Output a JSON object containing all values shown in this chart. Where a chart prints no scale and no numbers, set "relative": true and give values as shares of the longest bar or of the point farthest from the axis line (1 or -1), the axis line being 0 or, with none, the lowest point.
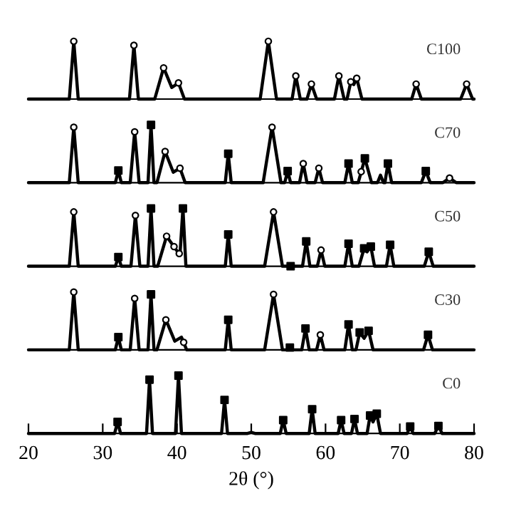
{
  "chart_data": [
    {
      "type": "line",
      "relative": true,
      "xlim": [
        20,
        80
      ],
      "tick_labels": false,
      "series": [
        {
          "name": "C100",
          "color": "#000000",
          "x": [
            20,
            25.5,
            26.1,
            26.7,
            33.6,
            34.2,
            34.8,
            37.0,
            38.2,
            39.3,
            40.2,
            41.0,
            51.2,
            52.3,
            53.4,
            55.5,
            56.0,
            56.6,
            57.5,
            58.1,
            58.8,
            61.2,
            61.8,
            62.5,
            62.9,
            63.4,
            63.8,
            64.2,
            64.9,
            71.6,
            72.2,
            72.9,
            78.2,
            79.0,
            79.8,
            80
          ],
          "values": [
            0,
            0,
            1,
            0,
            0,
            0.93,
            0,
            0,
            0.54,
            0.2,
            0.28,
            0,
            0,
            1,
            0,
            0,
            0.4,
            0,
            0,
            0.26,
            0,
            0,
            0.4,
            0,
            0,
            0.3,
            0.25,
            0.36,
            0,
            0,
            0.26,
            0,
            0,
            0.26,
            0,
            0
          ]
        },
        {
          "type": "scatter",
          "marker": "circle",
          "color": "#000000",
          "x": [
            26.1,
            34.2,
            38.2,
            40.2,
            52.3,
            56.0,
            58.1,
            61.8,
            63.4,
            64.2,
            72.2,
            79.0
          ],
          "values": [
            1,
            0.93,
            0.54,
            0.28,
            1,
            0.4,
            0.26,
            0.4,
            0.3,
            0.36,
            0.26,
            0.26
          ]
        }
      ]
    },
    {
      "type": "line",
      "relative": true,
      "xlim": [
        20,
        80
      ],
      "tick_labels": false,
      "series": [
        {
          "name": "C70",
          "color": "#000000",
          "x": [
            20,
            25.5,
            26.1,
            26.7,
            31.7,
            32.1,
            32.5,
            33.7,
            34.3,
            34.9,
            36.1,
            36.5,
            36.9,
            37.3,
            38.4,
            39.5,
            40.4,
            41.1,
            46.5,
            46.9,
            47.3,
            51.6,
            52.8,
            54.0,
            54.5,
            54.9,
            55.3,
            56.5,
            57.0,
            57.5,
            58.6,
            59.1,
            59.6,
            62.6,
            63.1,
            63.6,
            64.4,
            65.3,
            66.2,
            67.0,
            67.4,
            67.8,
            68.0,
            68.4,
            68.9,
            72.9,
            73.5,
            74.1,
            75.8,
            76.7,
            77.6,
            80
          ],
          "values": [
            0,
            0,
            0.96,
            0,
            0,
            0.21,
            0,
            0,
            0.88,
            0,
            0,
            1,
            0,
            0,
            0.54,
            0.18,
            0.25,
            0,
            0,
            0.5,
            0,
            0,
            0.96,
            0,
            0,
            0.2,
            0,
            0,
            0.33,
            0,
            0,
            0.25,
            0,
            0,
            0.33,
            0,
            0,
            0.42,
            0,
            0,
            0.13,
            0,
            0,
            0.33,
            0,
            0,
            0.2,
            0,
            0,
            0.08,
            0,
            0
          ]
        },
        {
          "type": "scatter",
          "marker": "circle",
          "color": "#000000",
          "x": [
            26.1,
            34.3,
            38.4,
            40.4,
            52.8,
            57.0,
            59.1,
            64.8,
            76.7
          ],
          "values": [
            0.96,
            0.88,
            0.54,
            0.25,
            0.96,
            0.33,
            0.25,
            0.19,
            0.08
          ]
        },
        {
          "type": "scatter",
          "marker": "square",
          "color": "#000000",
          "x": [
            32.1,
            36.5,
            46.9,
            54.9,
            63.1,
            65.3,
            68.4,
            73.5
          ],
          "values": [
            0.21,
            1,
            0.5,
            0.2,
            0.33,
            0.42,
            0.33,
            0.2
          ]
        }
      ]
    },
    {
      "type": "line",
      "relative": true,
      "xlim": [
        20,
        80
      ],
      "tick_labels": false,
      "series": [
        {
          "name": "C50",
          "color": "#000000",
          "x": [
            20,
            25.5,
            26.1,
            26.7,
            31.7,
            32.1,
            32.5,
            33.8,
            34.4,
            35.0,
            36.1,
            36.5,
            36.9,
            37.4,
            38.6,
            39.8,
            40.4,
            40.8,
            41.2,
            46.5,
            46.9,
            47.3,
            51.8,
            53.0,
            54.2,
            56.9,
            57.4,
            57.9,
            58.9,
            59.4,
            59.9,
            62.6,
            63.1,
            63.6,
            64.5,
            65.2,
            65.6,
            66.1,
            66.6,
            68.2,
            68.7,
            69.2,
            73.3,
            73.9,
            74.5,
            80
          ],
          "values": [
            0,
            0,
            0.94,
            0,
            0,
            0.16,
            0,
            0,
            0.88,
            0,
            0,
            1,
            0,
            0,
            0.52,
            0.3,
            0.2,
            1,
            0,
            0,
            0.55,
            0,
            0,
            0.94,
            0,
            0,
            0.43,
            0,
            0,
            0.28,
            0,
            0,
            0.39,
            0,
            0,
            0.31,
            0.25,
            0.34,
            0,
            0,
            0.37,
            0,
            0,
            0.25,
            0,
            0
          ]
        },
        {
          "type": "scatter",
          "marker": "circle",
          "color": "#000000",
          "x": [
            26.1,
            34.4,
            38.6,
            39.6,
            40.3,
            53.0,
            59.4
          ],
          "values": [
            0.94,
            0.88,
            0.52,
            0.34,
            0.22,
            0.94,
            0.28
          ]
        },
        {
          "type": "scatter",
          "marker": "square",
          "color": "#000000",
          "x": [
            32.1,
            36.5,
            40.8,
            46.9,
            55.3,
            57.4,
            63.1,
            65.2,
            66.1,
            68.7,
            73.9
          ],
          "values": [
            0.16,
            1,
            1,
            0.55,
            0,
            0.43,
            0.39,
            0.31,
            0.34,
            0.37,
            0.25
          ]
        }
      ]
    },
    {
      "type": "line",
      "relative": true,
      "xlim": [
        20,
        80
      ],
      "tick_labels": false,
      "series": [
        {
          "name": "C30",
          "color": "#000000",
          "x": [
            20,
            25.5,
            26.1,
            26.7,
            31.7,
            32.1,
            32.5,
            33.7,
            34.3,
            34.9,
            36.1,
            36.5,
            36.9,
            37.3,
            38.5,
            39.7,
            40.6,
            41.3,
            46.5,
            46.9,
            47.3,
            51.8,
            53.0,
            54.2,
            54.9,
            55.2,
            55.5,
            56.8,
            57.3,
            57.8,
            58.8,
            59.3,
            59.8,
            62.6,
            63.1,
            63.6,
            64.1,
            64.6,
            65.2,
            65.8,
            66.4,
            73.2,
            73.8,
            74.4,
            80
          ],
          "values": [
            0,
            0,
            1,
            0,
            0,
            0.22,
            0,
            0,
            0.89,
            0,
            0,
            0.96,
            0,
            0,
            0.52,
            0.15,
            0.22,
            0,
            0,
            0.52,
            0,
            0,
            0.96,
            0,
            0,
            0.04,
            0,
            0,
            0.37,
            0,
            0,
            0.26,
            0,
            0,
            0.44,
            0,
            0,
            0.3,
            0.2,
            0.33,
            0,
            0,
            0.26,
            0,
            0
          ]
        },
        {
          "type": "scatter",
          "marker": "circle",
          "color": "#000000",
          "x": [
            26.1,
            34.3,
            38.5,
            40.9,
            53.0,
            59.3
          ],
          "values": [
            1,
            0.89,
            0.52,
            0.13,
            0.96,
            0.26
          ]
        },
        {
          "type": "scatter",
          "marker": "square",
          "color": "#000000",
          "x": [
            32.1,
            36.5,
            46.9,
            55.2,
            57.3,
            63.1,
            64.6,
            65.8,
            73.8
          ],
          "values": [
            0.22,
            0.96,
            0.52,
            0.04,
            0.37,
            0.44,
            0.3,
            0.33,
            0.26
          ]
        }
      ]
    },
    {
      "type": "line",
      "relative": true,
      "xlim": [
        20,
        80
      ],
      "xticks": [
        20,
        30,
        40,
        50,
        60,
        70,
        80
      ],
      "xlabel": "2θ (°)",
      "tick_labels": "x",
      "series": [
        {
          "name": "C0",
          "color": "#000000",
          "x": [
            20,
            31.6,
            32.0,
            32.4,
            35.9,
            36.3,
            36.7,
            39.8,
            40.2,
            40.6,
            46.0,
            46.4,
            46.8,
            49.5,
            50.0,
            50.5,
            53.9,
            54.3,
            54.7,
            57.8,
            58.2,
            58.6,
            61.7,
            62.1,
            62.5,
            63.5,
            63.9,
            64.3,
            65.6,
            66.0,
            66.4,
            66.9,
            67.4,
            71.0,
            71.4,
            71.8,
            74.7,
            75.2,
            75.7,
            80
          ],
          "values": [
            0,
            0,
            0.2,
            0,
            0,
            0.93,
            0,
            0,
            1,
            0,
            0,
            0.58,
            0,
            0,
            0.02,
            0,
            0,
            0.23,
            0,
            0,
            0.42,
            0,
            0,
            0.23,
            0,
            0,
            0.25,
            0,
            0,
            0.31,
            0.2,
            0.34,
            0,
            0,
            0.12,
            0,
            0,
            0.13,
            0,
            0
          ]
        },
        {
          "type": "scatter",
          "marker": "square",
          "color": "#000000",
          "x": [
            32.0,
            36.3,
            40.2,
            46.4,
            54.3,
            58.2,
            62.1,
            63.9,
            66.0,
            66.9,
            71.4,
            75.2
          ],
          "values": [
            0.2,
            0.93,
            1,
            0.58,
            0.23,
            0.42,
            0.23,
            0.25,
            0.31,
            0.34,
            0.12,
            0.13
          ]
        }
      ]
    }
  ]
}
